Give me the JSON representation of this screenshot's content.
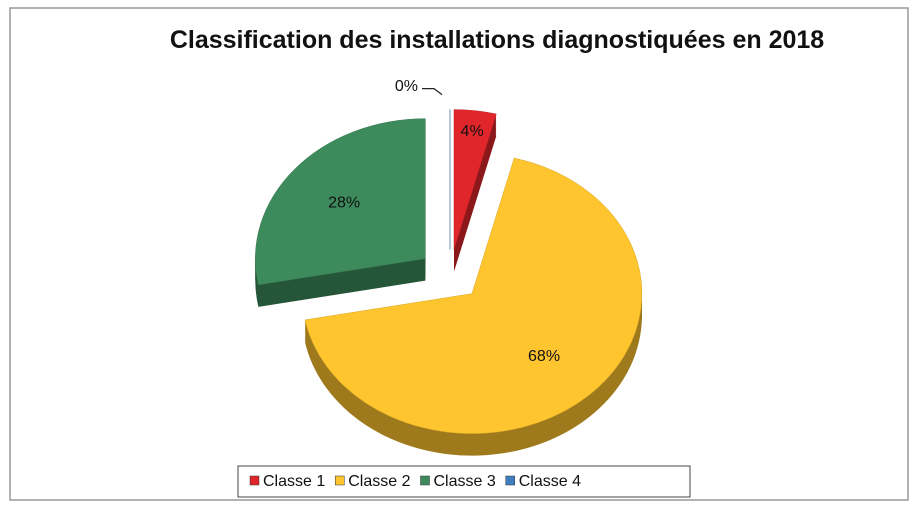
{
  "chart_data": {
    "type": "pie",
    "title": "Classification des installations diagnostiquées en 2018",
    "categories": [
      "Classe 1",
      "Classe 2",
      "Classe 3",
      "Classe 4"
    ],
    "values": [
      4,
      68,
      28,
      0
    ],
    "value_labels": [
      "4%",
      "68%",
      "28%",
      "0%"
    ],
    "colors": [
      "#e0262a",
      "#ffc52e",
      "#3d8b5c",
      "#3f7fc0"
    ],
    "legend": "bottom"
  }
}
